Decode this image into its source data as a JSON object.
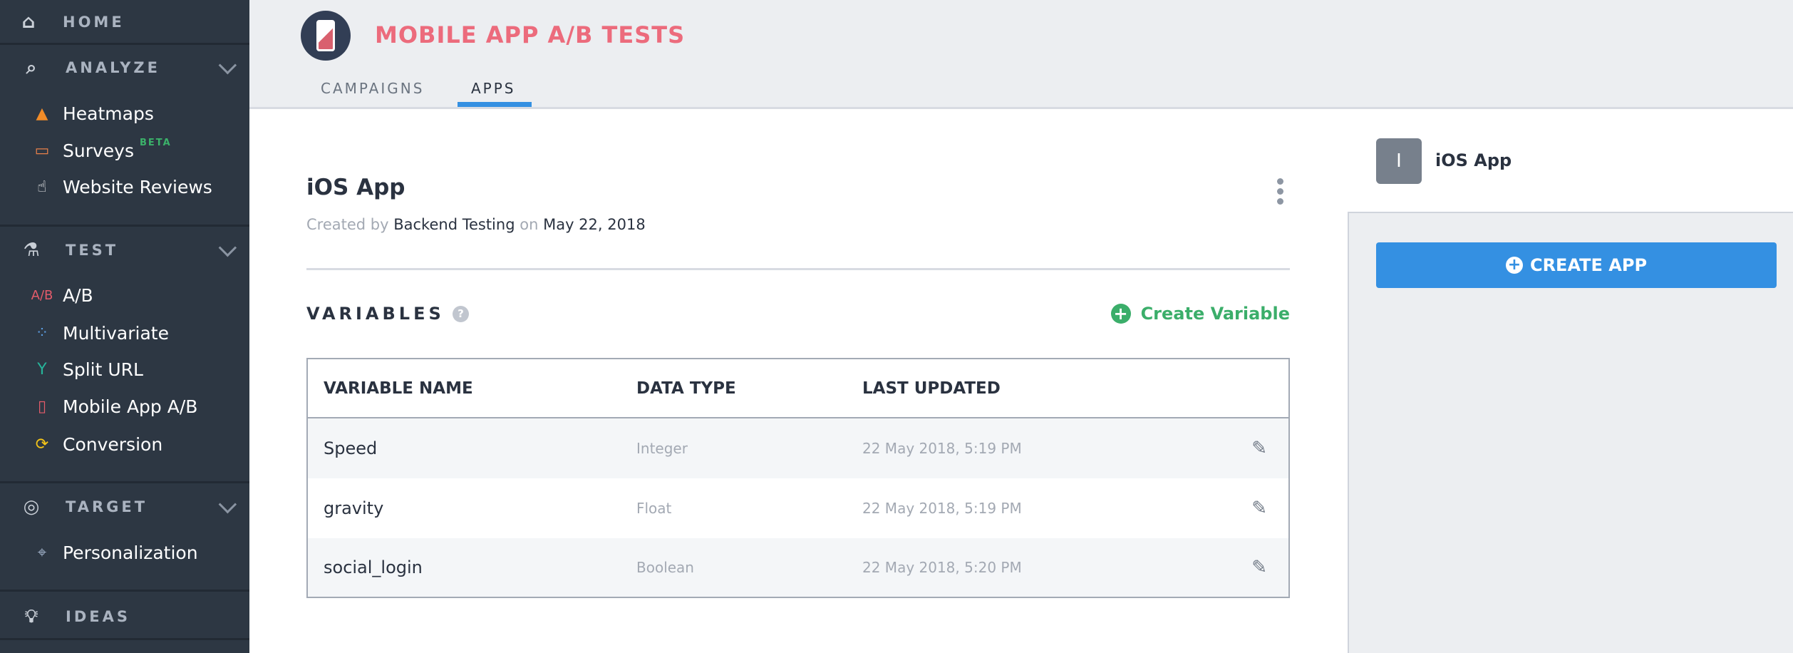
{
  "sidebar": {
    "home": "HOME",
    "analyze": {
      "label": "ANALYZE",
      "items": [
        {
          "label": "Heatmaps"
        },
        {
          "label": "Surveys",
          "badge": "BETA"
        },
        {
          "label": "Website Reviews"
        }
      ]
    },
    "test": {
      "label": "TEST",
      "items": [
        {
          "label": "A/B"
        },
        {
          "label": "Multivariate"
        },
        {
          "label": "Split URL"
        },
        {
          "label": "Mobile App A/B"
        },
        {
          "label": "Conversion"
        }
      ]
    },
    "target": {
      "label": "TARGET",
      "items": [
        {
          "label": "Personalization"
        }
      ]
    },
    "ideas": "IDEAS"
  },
  "header": {
    "title": "MOBILE APP A/B TESTS",
    "tabs": [
      {
        "label": "CAMPAIGNS"
      },
      {
        "label": "APPS",
        "active": true
      }
    ]
  },
  "app": {
    "name": "iOS App",
    "created_prefix": "Created by",
    "created_by": "Backend Testing",
    "created_on_word": "on",
    "created_date": "May 22, 2018",
    "variables_heading": "VARIABLES",
    "help_icon_text": "?",
    "create_variable": "Create Variable",
    "table": {
      "headers": [
        "VARIABLE NAME",
        "DATA TYPE",
        "LAST UPDATED"
      ],
      "rows": [
        {
          "name": "Speed",
          "type": "Integer",
          "updated": "22 May 2018, 5:19 PM"
        },
        {
          "name": "gravity",
          "type": "Float",
          "updated": "22 May 2018, 5:19 PM"
        },
        {
          "name": "social_login",
          "type": "Boolean",
          "updated": "22 May 2018, 5:20 PM"
        }
      ]
    }
  },
  "right_panel": {
    "app_initial": "I",
    "app_name": "iOS App",
    "create_app": "CREATE APP"
  },
  "colors": {
    "sidebar": "#2d3743",
    "title": "#ec6b7c",
    "accent_blue": "#3490e2",
    "green": "#3bae6a"
  }
}
